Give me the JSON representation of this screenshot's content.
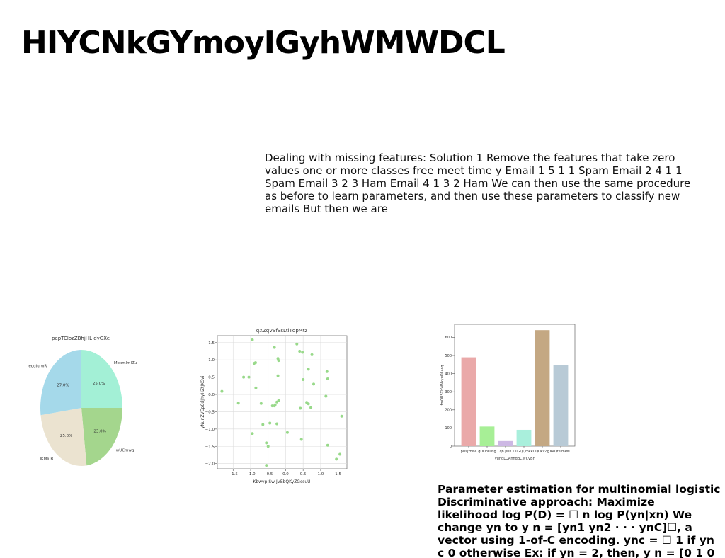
{
  "title": "HIYCNkGYmoyIGyhWMWDCL",
  "paragraph1": "Dealing with missing features: Solution 1 Remove the features that take zero values one or more classes free meet time y Email 1 5 1 1 Spam Email 2 4 1 1 Spam Email 3 2 3 Ham Email 4 1 3 2 Ham We can then use the same procedure as before to learn parameters, and then use these parameters to classify new emails But then we are",
  "paragraph2_lines": [
    "Parameter estimation for multinomial logistic",
    "Discriminative approach: Maximize",
    "likelihood log P(D) = ☐ n log P(yn|xn) We",
    "change yn to y n = [yn1 yn2 · · · ynC]☐, a",
    "vector using 1-of-C encoding. ync = ☐ 1 if yn",
    "c 0 otherwise Ex: if yn = 2, then, y n = [0 1 0"
  ],
  "chart_data": [
    {
      "type": "pie",
      "title": "pepTClozZBhjHL dyGXe",
      "labels": [
        "MexmlmlZu",
        "wUCmwg",
        "lKMluB",
        "eoglurwR"
      ],
      "values": [
        25.0,
        23.0,
        25.0,
        27.0
      ],
      "pct_labels": [
        "25.0%",
        "23.0%",
        "25.0%",
        "27.0%"
      ],
      "colors": [
        "#a3f0d6",
        "#a4d68d",
        "#ebe3d0",
        "#a5d9ea"
      ]
    },
    {
      "type": "scatter",
      "title": "qXZqVSfSsLtiTqpMtz",
      "xlabel": "Kbwyp Sw JVEbQKyZGcsuU",
      "ylabel": "yNunZVEpCdJhyHZtJXSvi",
      "xlim": [
        -1.95,
        1.75
      ],
      "ylim": [
        -2.15,
        1.7
      ],
      "xticks": [
        -1.5,
        -1.0,
        -0.5,
        0.0,
        0.5,
        1.0,
        1.5
      ],
      "xtick_labels": [
        "−1.5",
        "−1.0",
        "−0.5",
        "0.0",
        "0.5",
        "1.0",
        "1.5"
      ],
      "yticks": [
        1.5,
        1.0,
        0.5,
        0.0,
        -0.5,
        -1.0,
        -1.5,
        -2.0
      ],
      "ytick_labels": [
        "1.5",
        "1.0",
        "0.5",
        "0.0",
        "−0.5",
        "−1.0",
        "−1.5",
        "−2.0"
      ],
      "grid": true,
      "color": "#98d98a",
      "points": [
        [
          -0.95,
          1.58
        ],
        [
          -0.32,
          1.36
        ],
        [
          0.32,
          1.46
        ],
        [
          0.4,
          1.25
        ],
        [
          0.48,
          1.22
        ],
        [
          0.75,
          1.15
        ],
        [
          -0.22,
          1.04
        ],
        [
          -0.2,
          0.98
        ],
        [
          -0.86,
          0.92
        ],
        [
          -0.9,
          0.9
        ],
        [
          0.65,
          0.73
        ],
        [
          1.18,
          0.66
        ],
        [
          1.2,
          0.45
        ],
        [
          -1.2,
          0.5
        ],
        [
          -1.05,
          0.5
        ],
        [
          -0.22,
          0.54
        ],
        [
          0.5,
          0.43
        ],
        [
          0.8,
          0.3
        ],
        [
          -0.85,
          0.19
        ],
        [
          -1.82,
          0.09
        ],
        [
          1.15,
          -0.05
        ],
        [
          -0.2,
          -0.18
        ],
        [
          -0.25,
          -0.22
        ],
        [
          -0.3,
          -0.3
        ],
        [
          -1.35,
          -0.25
        ],
        [
          -0.7,
          -0.26
        ],
        [
          0.6,
          -0.23
        ],
        [
          0.65,
          -0.27
        ],
        [
          -0.32,
          -0.33
        ],
        [
          -0.38,
          -0.33
        ],
        [
          0.72,
          -0.38
        ],
        [
          0.42,
          -0.4
        ],
        [
          1.6,
          -0.63
        ],
        [
          -0.45,
          -0.83
        ],
        [
          -0.25,
          -0.85
        ],
        [
          -0.65,
          -0.87
        ],
        [
          0.05,
          -1.1
        ],
        [
          -0.95,
          -1.13
        ],
        [
          0.45,
          -1.3
        ],
        [
          -0.55,
          -1.4
        ],
        [
          -0.5,
          -1.5
        ],
        [
          1.2,
          -1.47
        ],
        [
          1.55,
          -1.73
        ],
        [
          1.45,
          -1.87
        ],
        [
          -0.55,
          -2.05
        ]
      ]
    },
    {
      "type": "bar",
      "title": "",
      "xlabel": "yundLQAhndBCWCvBY",
      "ylabel": "fmORSXbWNkyuOLacq",
      "categories": [
        "pOsjznNe",
        "gDOpOlNg",
        "qh puh",
        "CuGQQmkRL",
        "QQkvZg",
        "KAQteimPeO"
      ],
      "values": [
        490,
        108,
        28,
        90,
        640,
        448
      ],
      "colors": [
        "#eaa9a9",
        "#a7ef96",
        "#cdb8e4",
        "#a9efdc",
        "#c4a883",
        "#b8cad6"
      ],
      "ylim": [
        0,
        672
      ],
      "yticks": [
        0,
        100,
        200,
        300,
        400,
        500,
        600
      ],
      "ytick_labels": [
        "0",
        "100",
        "200",
        "300",
        "400",
        "500",
        "600"
      ]
    }
  ]
}
